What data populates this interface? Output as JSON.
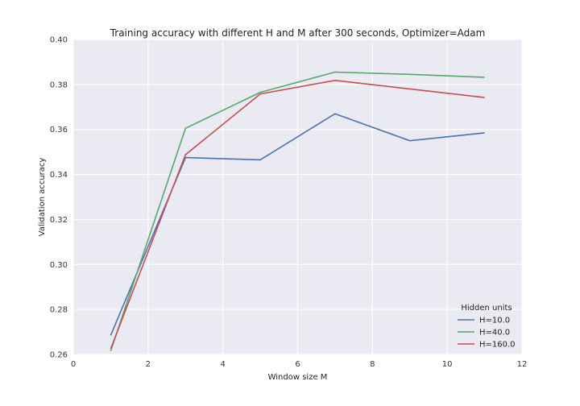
{
  "chart_data": {
    "type": "line",
    "title": "Training accuracy with different H and M after 300 seconds, Optimizer=Adam",
    "xlabel": "Window size M",
    "ylabel": "Validation accuracy",
    "xlim": [
      0,
      12
    ],
    "ylim": [
      0.26,
      0.4
    ],
    "xticks": [
      0,
      2,
      4,
      6,
      8,
      10,
      12
    ],
    "yticks": [
      0.26,
      0.28,
      0.3,
      0.32,
      0.34,
      0.36,
      0.38,
      0.4
    ],
    "xtick_labels": [
      "0",
      "2",
      "4",
      "6",
      "8",
      "10",
      "12"
    ],
    "ytick_labels": [
      "0.26",
      "0.28",
      "0.30",
      "0.32",
      "0.34",
      "0.36",
      "0.38",
      "0.40"
    ],
    "grid": true,
    "legend": {
      "title": "Hidden units",
      "placement": "lower-right"
    },
    "series": [
      {
        "name": "H=10.0",
        "color": "#4c72b0",
        "x": [
          1,
          3,
          5,
          7,
          9,
          11
        ],
        "y": [
          0.2685,
          0.3475,
          0.3465,
          0.367,
          0.355,
          0.3585
        ]
      },
      {
        "name": "H=40.0",
        "color": "#55a868",
        "x": [
          1,
          3,
          5,
          7,
          9,
          11
        ],
        "y": [
          0.2615,
          0.3605,
          0.3765,
          0.3855,
          0.3845,
          0.3832
        ]
      },
      {
        "name": "H=160.0",
        "color": "#c44e52",
        "x": [
          1,
          3,
          5,
          7,
          9,
          11
        ],
        "y": [
          0.2625,
          0.3488,
          0.3758,
          0.3818,
          0.378,
          0.3742
        ]
      }
    ]
  },
  "colors": {
    "plot_bg": "#eaeaf2",
    "grid": "#ffffff"
  }
}
